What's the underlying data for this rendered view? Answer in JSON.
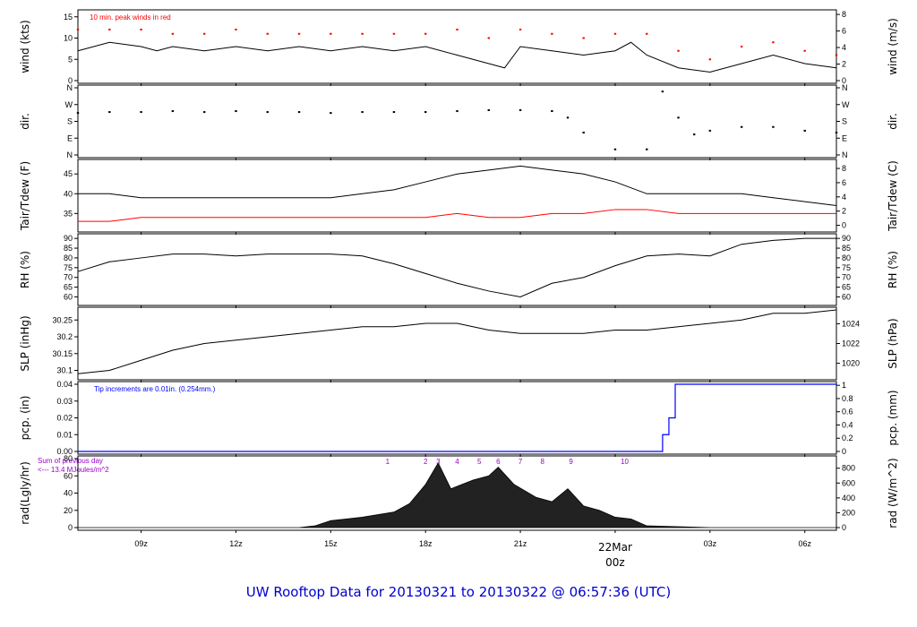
{
  "title": "UW Rooftop Data for 20130321  to  20130322 @ 06:57:36  (UTC)",
  "colors": {
    "data": "#000000",
    "peak": "#ff0000",
    "dew": "#ff0000",
    "pcp": "#0000ff",
    "annotation": "#9900cc",
    "title": "#0000cc",
    "date": "#ff0000"
  },
  "time_axis": {
    "start_hour": 7.0,
    "end_hour": 31.0,
    "ticks": [
      {
        "hour": 9,
        "label": "09z"
      },
      {
        "hour": 12,
        "label": "12z"
      },
      {
        "hour": 15,
        "label": "15z"
      },
      {
        "hour": 18,
        "label": "18z"
      },
      {
        "hour": 21,
        "label": "21z"
      },
      {
        "hour": 24,
        "label": "00z"
      },
      {
        "hour": 27,
        "label": "03z"
      },
      {
        "hour": 30,
        "label": "06z"
      }
    ],
    "date_label": "22Mar",
    "date_hour": 24
  },
  "chart_data": [
    {
      "id": "wind",
      "type": "line",
      "ylabel": "wind (kts)",
      "ylabel_right": "wind (m/s)",
      "ylim": [
        0,
        16
      ],
      "yticks": [
        0,
        5,
        10,
        15
      ],
      "right_ylim": [
        0,
        8.23
      ],
      "right_yticks": [
        0,
        2,
        4,
        6,
        8
      ],
      "annotation": "10 min. peak winds in red",
      "series": [
        {
          "kind": "wind",
          "style": "line",
          "x": [
            7.0,
            8.0,
            9.0,
            9.5,
            10.0,
            11.0,
            12.0,
            13.0,
            14.0,
            15.0,
            16.0,
            17.0,
            18.0,
            19.0,
            20.0,
            20.5,
            21.0,
            22.0,
            23.0,
            24.0,
            24.5,
            25.0,
            26.0,
            27.0,
            28.0,
            29.0,
            30.0,
            31.0
          ],
          "y": [
            7,
            9,
            8,
            7,
            8,
            7,
            8,
            7,
            8,
            7,
            8,
            7,
            8,
            6,
            4,
            3,
            8,
            7,
            6,
            7,
            9,
            6,
            3,
            2,
            4,
            6,
            4,
            3
          ]
        },
        {
          "kind": "peak",
          "style": "points",
          "x": [
            7.0,
            8.0,
            9.0,
            10.0,
            11.0,
            12.0,
            13.0,
            14.0,
            15.0,
            16.0,
            17.0,
            18.0,
            19.0,
            20.0,
            21.0,
            22.0,
            23.0,
            24.0,
            25.0,
            26.0,
            27.0,
            28.0,
            29.0,
            30.0,
            31.0
          ],
          "y": [
            12,
            12,
            12,
            11,
            11,
            12,
            11,
            11,
            11,
            11,
            11,
            11,
            12,
            10,
            12,
            11,
            10,
            11,
            11,
            7,
            5,
            8,
            9,
            7,
            6
          ]
        }
      ]
    },
    {
      "id": "dir",
      "type": "scatter",
      "ylabel": "dir.",
      "ylabel_right": "dir.",
      "ylim": [
        0,
        360
      ],
      "yticks": [
        0,
        90,
        180,
        270,
        360
      ],
      "ytick_labels": [
        "N",
        "E",
        "S",
        "W",
        "N"
      ],
      "series": [
        {
          "kind": "dir",
          "style": "points",
          "x": [
            7.0,
            8.0,
            9.0,
            10.0,
            11.0,
            12.0,
            13.0,
            14.0,
            15.0,
            16.0,
            17.0,
            18.0,
            19.0,
            20.0,
            21.0,
            22.0,
            22.5,
            23.0,
            24.0,
            25.0,
            25.5,
            26.0,
            26.5,
            27.0,
            28.0,
            29.0,
            30.0,
            31.0
          ],
          "y": [
            225,
            230,
            230,
            235,
            230,
            235,
            230,
            230,
            225,
            230,
            230,
            230,
            235,
            240,
            240,
            235,
            200,
            120,
            30,
            30,
            340,
            200,
            110,
            130,
            150,
            150,
            130,
            120
          ]
        }
      ]
    },
    {
      "id": "temp",
      "type": "line",
      "ylabel": "Tair/Tdew (F)",
      "ylabel_right": "Tair/Tdew (C)",
      "ylim": [
        31,
        48
      ],
      "yticks": [
        35,
        40,
        45
      ],
      "right_ylim": [
        -0.56,
        8.89
      ],
      "right_yticks": [
        0,
        2,
        4,
        6,
        8
      ],
      "series": [
        {
          "kind": "tair",
          "style": "line",
          "x": [
            7.0,
            8.0,
            9.0,
            10.0,
            11.0,
            12.0,
            13.0,
            14.0,
            15.0,
            16.0,
            17.0,
            18.0,
            19.0,
            20.0,
            21.0,
            22.0,
            23.0,
            24.0,
            25.0,
            26.0,
            27.0,
            28.0,
            29.0,
            30.0,
            31.0
          ],
          "y": [
            40,
            40,
            39,
            39,
            39,
            39,
            39,
            39,
            39,
            40,
            41,
            43,
            45,
            46,
            47,
            46,
            45,
            43,
            40,
            40,
            40,
            40,
            39,
            38,
            37
          ]
        },
        {
          "kind": "tdew",
          "style": "line",
          "x": [
            7.0,
            8.0,
            9.0,
            10.0,
            11.0,
            12.0,
            13.0,
            14.0,
            15.0,
            16.0,
            17.0,
            18.0,
            19.0,
            20.0,
            21.0,
            22.0,
            23.0,
            24.0,
            25.0,
            26.0,
            27.0,
            28.0,
            29.0,
            30.0,
            31.0
          ],
          "y": [
            33,
            33,
            34,
            34,
            34,
            34,
            34,
            34,
            34,
            34,
            34,
            34,
            35,
            34,
            34,
            35,
            35,
            36,
            36,
            35,
            35,
            35,
            35,
            35,
            35
          ]
        }
      ]
    },
    {
      "id": "rh",
      "type": "line",
      "ylabel": "RH (%)",
      "ylabel_right": "RH (%)",
      "ylim": [
        57,
        91
      ],
      "yticks": [
        60,
        65,
        70,
        75,
        80,
        85,
        90
      ],
      "right_ylim": [
        57,
        91
      ],
      "right_yticks": [
        60,
        65,
        70,
        75,
        80,
        85,
        90
      ],
      "series": [
        {
          "kind": "rh",
          "style": "line",
          "x": [
            7.0,
            8.0,
            9.0,
            10.0,
            11.0,
            12.0,
            13.0,
            14.0,
            15.0,
            16.0,
            17.0,
            18.0,
            19.0,
            20.0,
            21.0,
            22.0,
            23.0,
            24.0,
            25.0,
            26.0,
            27.0,
            28.0,
            29.0,
            30.0,
            31.0
          ],
          "y": [
            73,
            78,
            80,
            82,
            82,
            81,
            82,
            82,
            82,
            81,
            77,
            72,
            67,
            63,
            60,
            67,
            70,
            76,
            81,
            82,
            81,
            87,
            89,
            90,
            90
          ]
        }
      ]
    },
    {
      "id": "slp",
      "type": "line",
      "ylabel": "SLP (inHg)",
      "ylabel_right": "SLP (hPa)",
      "ylim": [
        30.08,
        30.28
      ],
      "yticks": [
        30.1,
        30.15,
        30.2,
        30.25
      ],
      "right_ylim": [
        1018.6,
        1025.4
      ],
      "right_yticks": [
        1020,
        1022,
        1024
      ],
      "series": [
        {
          "kind": "slp",
          "style": "line",
          "x": [
            7.0,
            8.0,
            9.0,
            10.0,
            11.0,
            12.0,
            13.0,
            14.0,
            15.0,
            16.0,
            17.0,
            18.0,
            19.0,
            20.0,
            21.0,
            22.0,
            23.0,
            24.0,
            25.0,
            26.0,
            27.0,
            28.0,
            29.0,
            30.0,
            31.0
          ],
          "y": [
            30.09,
            30.1,
            30.13,
            30.16,
            30.18,
            30.19,
            30.2,
            30.21,
            30.22,
            30.23,
            30.23,
            30.24,
            30.24,
            30.22,
            30.21,
            30.21,
            30.21,
            30.22,
            30.22,
            30.23,
            30.24,
            30.25,
            30.27,
            30.27,
            30.28
          ]
        }
      ]
    },
    {
      "id": "pcp",
      "type": "line",
      "ylabel": "pcp. (in)",
      "ylabel_right": "pcp. (mm)",
      "ylim": [
        0,
        0.04
      ],
      "yticks": [
        0.0,
        0.01,
        0.02,
        0.03,
        0.04
      ],
      "ytick_labels": [
        "0.00",
        "0.01",
        "0.02",
        "0.03",
        "0.04"
      ],
      "right_ylim": [
        0,
        1.016
      ],
      "right_yticks": [
        0,
        0.2,
        0.4,
        0.6,
        0.8,
        1
      ],
      "annotation": "Tip increments are 0.01in. (0.254mm.)",
      "series": [
        {
          "kind": "pcp",
          "style": "step",
          "x": [
            7.0,
            25.4,
            25.5,
            25.7,
            25.9,
            31.0
          ],
          "y": [
            0.0,
            0.0,
            0.01,
            0.02,
            0.04,
            0.04
          ]
        }
      ]
    },
    {
      "id": "rad",
      "type": "area",
      "ylabel": "rad(Lgly/hr)",
      "ylabel_right": "rad (W/m^2)",
      "ylim": [
        0,
        80
      ],
      "yticks": [
        0,
        20,
        40,
        60,
        80
      ],
      "right_ylim": [
        0,
        929.6
      ],
      "right_yticks": [
        0,
        200,
        400,
        600,
        800
      ],
      "annotation": "Sum of previous day\n<--- 13.4 MJoules/m^2",
      "markers": [
        {
          "hour": 16.8,
          "label": "1"
        },
        {
          "hour": 18.0,
          "label": "2"
        },
        {
          "hour": 18.4,
          "label": "3"
        },
        {
          "hour": 19.0,
          "label": "4"
        },
        {
          "hour": 19.7,
          "label": "5"
        },
        {
          "hour": 20.3,
          "label": "6"
        },
        {
          "hour": 21.0,
          "label": "7"
        },
        {
          "hour": 21.7,
          "label": "8"
        },
        {
          "hour": 22.6,
          "label": "9"
        },
        {
          "hour": 24.3,
          "label": "10"
        }
      ],
      "series": [
        {
          "kind": "rad",
          "style": "area",
          "x": [
            7.0,
            14.0,
            14.5,
            15.0,
            16.0,
            17.0,
            17.5,
            18.0,
            18.4,
            18.8,
            19.5,
            20.0,
            20.3,
            20.8,
            21.5,
            22.0,
            22.5,
            23.0,
            23.5,
            24.0,
            24.5,
            25.0,
            26.0,
            27.0,
            31.0
          ],
          "y": [
            0,
            0,
            2,
            8,
            12,
            18,
            28,
            50,
            75,
            45,
            55,
            60,
            70,
            50,
            35,
            30,
            45,
            25,
            20,
            12,
            10,
            2,
            1,
            0,
            0
          ]
        }
      ]
    }
  ]
}
